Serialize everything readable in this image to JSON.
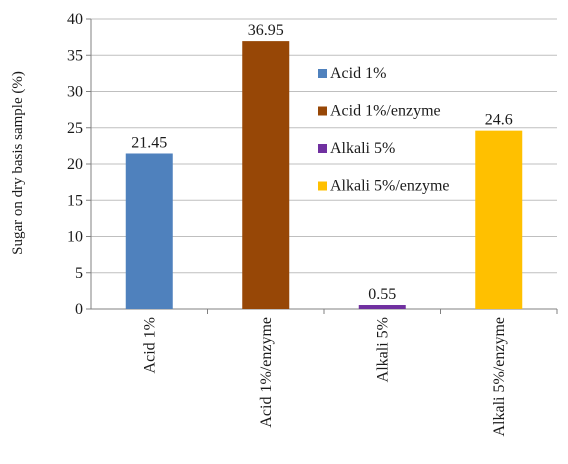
{
  "chart_data": {
    "type": "bar",
    "ylabel": "Sugar on dry basis sample (%)",
    "xlabel": "",
    "ylim": [
      0,
      40
    ],
    "yticks": [
      0,
      5,
      10,
      15,
      20,
      25,
      30,
      35,
      40
    ],
    "categories": [
      "Acid 1%",
      "Acid 1%/enzyme",
      "Alkali 5%",
      "Alkali 5%/enzyme"
    ],
    "values": [
      21.45,
      36.95,
      0.55,
      24.6
    ],
    "value_labels": [
      "21.45",
      "36.95",
      "0.55",
      "24.6"
    ],
    "colors": [
      "#4f81bd",
      "#974706",
      "#7030a0",
      "#ffc000"
    ],
    "legend": {
      "position": "inside-center",
      "entries": [
        "Acid 1%",
        "Acid 1%/enzyme",
        "Alkali 5%",
        "Alkali 5%/enzyme"
      ]
    },
    "grid": true
  }
}
